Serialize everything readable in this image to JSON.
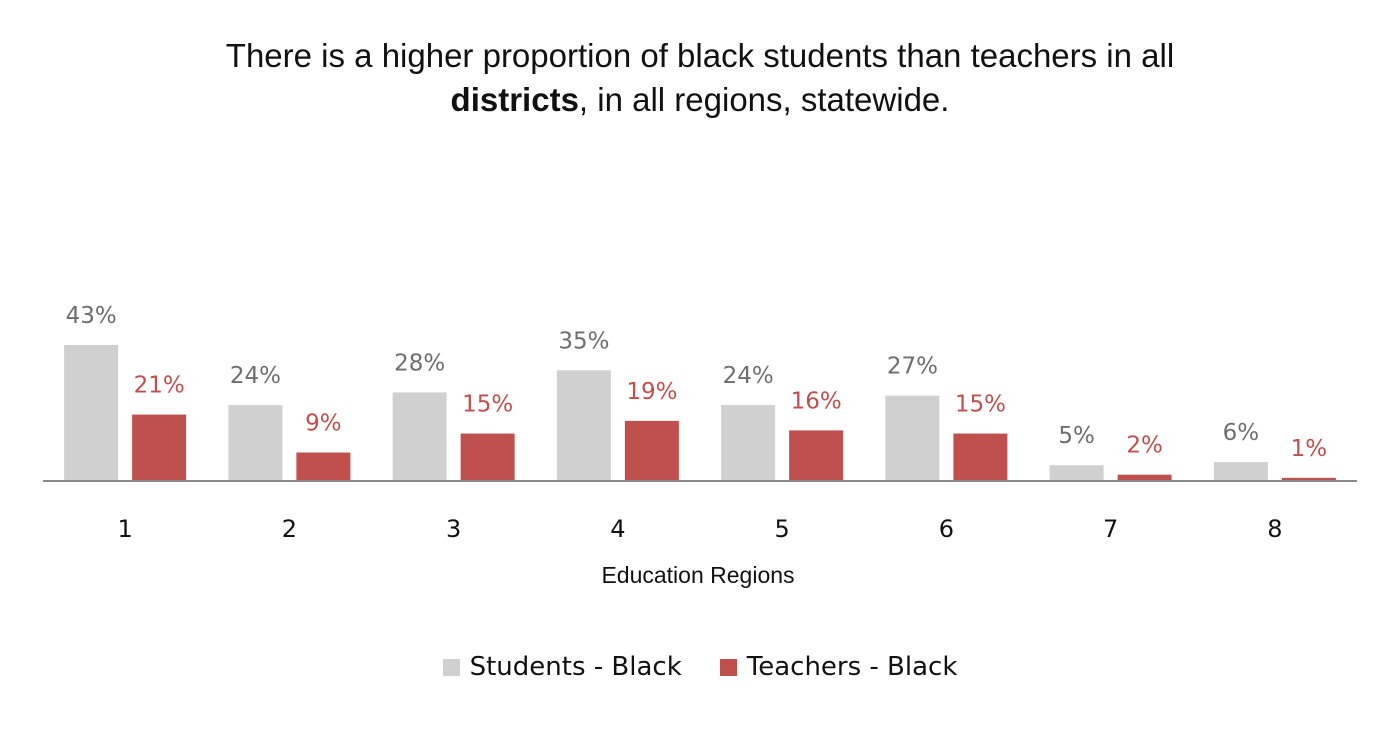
{
  "chart_data": {
    "type": "bar",
    "title_before_bold": "There is a higher proportion of black students than teachers in all",
    "title_bold": "districts",
    "title_after_bold": ", in all regions, statewide.",
    "xlabel": "Education Regions",
    "ylabel": "",
    "categories": [
      "1",
      "2",
      "3",
      "4",
      "5",
      "6",
      "7",
      "8"
    ],
    "series": [
      {
        "name": "Students - Black",
        "color": "#d0d0d0",
        "label_color": "#6e6e6e",
        "values": [
          43,
          24,
          28,
          35,
          24,
          27,
          5,
          6
        ],
        "labels": [
          "43%",
          "24%",
          "28%",
          "35%",
          "24%",
          "27%",
          "5%",
          "6%"
        ]
      },
      {
        "name": "Teachers - Black",
        "color": "#c0504d",
        "label_color": "#c0504d",
        "values": [
          21,
          9,
          15,
          19,
          16,
          15,
          2,
          1
        ],
        "labels": [
          "21%",
          "9%",
          "15%",
          "19%",
          "16%",
          "15%",
          "2%",
          "1%"
        ]
      }
    ],
    "ylim": [
      0,
      43
    ],
    "grid": false,
    "legend_position": "bottom"
  }
}
